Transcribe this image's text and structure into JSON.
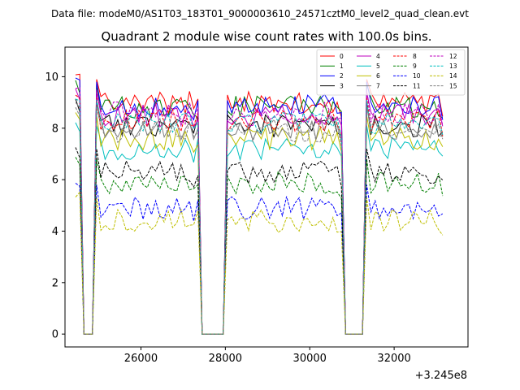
{
  "suptitle": "Data file: modeM0/AS1T03_183T01_9000003610_24571cztM0_level2_quad_clean.evt",
  "chart_data": {
    "type": "line",
    "title": "Quadrant 2 module wise count rates with 100.0s bins.",
    "xlabel": "",
    "ylabel": "",
    "x_offset_label": "+3.245e8",
    "xlim": [
      24200,
      33750
    ],
    "ylim": [
      -0.5,
      11.15
    ],
    "xticks": [
      26000,
      28000,
      30000,
      32000
    ],
    "xtick_labels": [
      "26000",
      "28000",
      "30000",
      "32000"
    ],
    "yticks": [
      0,
      2,
      4,
      6,
      8,
      10
    ],
    "ytick_labels": [
      "0",
      "2",
      "4",
      "6",
      "8",
      "10"
    ],
    "legend_position": "top-right",
    "segment_starts": [
      24450,
      24950,
      28100,
      31350
    ],
    "segment_ends": [
      24550,
      27250,
      30750,
      33150
    ],
    "gap_ranges": [
      [
        24650,
        24850
      ],
      [
        27400,
        28000
      ],
      [
        30850,
        31250
      ]
    ],
    "series": [
      {
        "name": "0",
        "color": "#ff0000",
        "dash": "solid",
        "level": 9.0
      },
      {
        "name": "1",
        "color": "#008000",
        "dash": "solid",
        "level": 8.8
      },
      {
        "name": "2",
        "color": "#0000ff",
        "dash": "solid",
        "level": 8.9
      },
      {
        "name": "3",
        "color": "#000000",
        "dash": "solid",
        "level": 8.1
      },
      {
        "name": "4",
        "color": "#bf00bf",
        "dash": "solid",
        "level": 8.5
      },
      {
        "name": "5",
        "color": "#00bfbf",
        "dash": "solid",
        "level": 7.2
      },
      {
        "name": "6",
        "color": "#bfbf00",
        "dash": "solid",
        "level": 7.6
      },
      {
        "name": "7",
        "color": "#808080",
        "dash": "solid",
        "level": 8.0
      },
      {
        "name": "8",
        "color": "#ff0000",
        "dash": "dashed",
        "level": 8.3
      },
      {
        "name": "9",
        "color": "#008000",
        "dash": "dashed",
        "level": 5.9
      },
      {
        "name": "10",
        "color": "#0000ff",
        "dash": "dashed",
        "level": 4.9
      },
      {
        "name": "11",
        "color": "#000000",
        "dash": "dashed",
        "level": 6.3
      },
      {
        "name": "12",
        "color": "#bf00bf",
        "dash": "dashed",
        "level": 8.6
      },
      {
        "name": "13",
        "color": "#00bfbf",
        "dash": "dashed",
        "level": 8.2
      },
      {
        "name": "14",
        "color": "#bfbf00",
        "dash": "dashed",
        "level": 4.4
      },
      {
        "name": "15",
        "color": "#808080",
        "dash": "dashed",
        "level": 7.9
      }
    ]
  }
}
